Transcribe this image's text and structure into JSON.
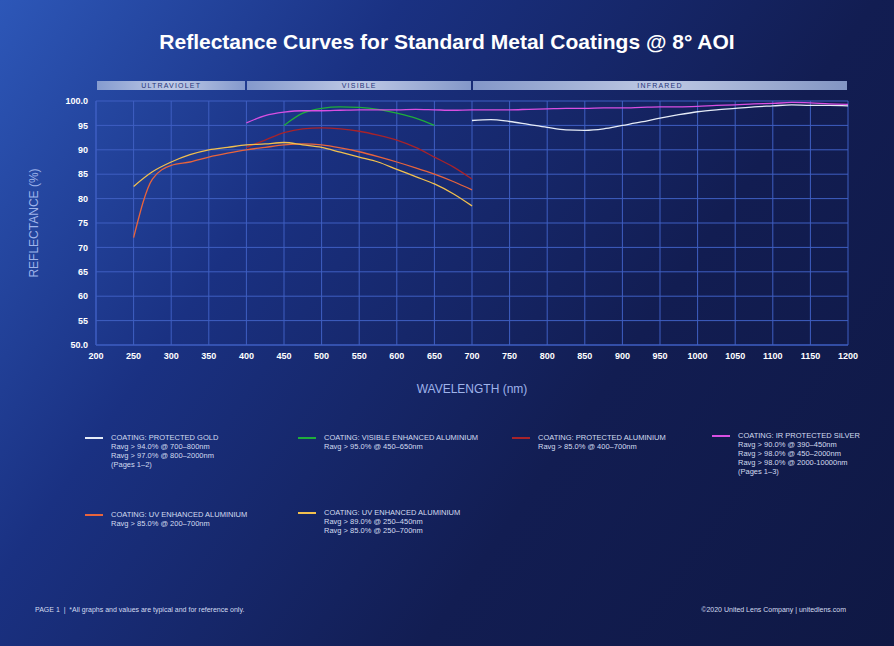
{
  "chart_data": {
    "type": "line",
    "title": "Reflectance Curves for Standard Metal Coatings @ 8° AOI",
    "x_label": "WAVELENGTH (nm)",
    "y_label": "REFLECTANCE (%)",
    "regions": [
      {
        "label": "ULTRAVIOLET",
        "start": 200,
        "end": 400
      },
      {
        "label": "VISIBLE",
        "start": 400,
        "end": 700
      },
      {
        "label": "INFRARED",
        "start": 700,
        "end": 1200
      }
    ],
    "x": [
      250,
      275,
      300,
      325,
      350,
      375,
      400,
      425,
      450,
      475,
      500,
      525,
      550,
      575,
      600,
      625,
      650,
      675,
      700,
      725,
      750,
      775,
      800,
      825,
      850,
      875,
      900,
      925,
      950,
      975,
      1000,
      1025,
      1050,
      1075,
      1100,
      1125,
      1150,
      1175,
      1200
    ],
    "xlim": [
      200,
      1200
    ],
    "xticks": [
      200,
      250,
      300,
      350,
      400,
      450,
      500,
      550,
      600,
      650,
      700,
      750,
      800,
      850,
      900,
      950,
      1000,
      1050,
      1100,
      1150,
      1200
    ],
    "ylim": [
      50,
      100
    ],
    "yticks": [
      {
        "value": 50,
        "label": "50.0"
      },
      55,
      60,
      65,
      70,
      75,
      80,
      85,
      90,
      95,
      {
        "value": 100,
        "label": "100.0"
      }
    ],
    "grid": true,
    "legend": "bottom",
    "series": [
      {
        "name": "COATING: PROTECTED GOLD",
        "color": "#e6ecf7",
        "notes": [
          "Ravg > 94.0% @ 700–800nm",
          "Ravg > 97.0% @ 800–2000nm",
          "(Pages 1–2)"
        ],
        "values": [
          null,
          null,
          null,
          null,
          null,
          null,
          null,
          null,
          null,
          null,
          null,
          null,
          null,
          null,
          null,
          null,
          null,
          null,
          96,
          96.2,
          95.8,
          95.2,
          94.6,
          94.1,
          94,
          94.3,
          95,
          95.7,
          96.5,
          97.2,
          97.8,
          98.2,
          98.5,
          98.8,
          99,
          99.2,
          99.1,
          99.1,
          99
        ]
      },
      {
        "name": "COATING: VISIBLE ENHANCED ALUMINIUM",
        "color": "#1fae3a",
        "notes": [
          "Ravg > 95.0% @ 450–650nm"
        ],
        "values": [
          null,
          null,
          null,
          null,
          null,
          null,
          null,
          null,
          95,
          97.5,
          98.5,
          98.8,
          98.7,
          98.3,
          97.5,
          96.5,
          95,
          null,
          null,
          null,
          null,
          null,
          null,
          null,
          null,
          null,
          null,
          null,
          null,
          null,
          null,
          null,
          null,
          null,
          null,
          null,
          null,
          null,
          null
        ]
      },
      {
        "name": "COATING: PROTECTED ALUMINIUM",
        "color": "#a8232a",
        "notes": [
          "Ravg > 85.0% @ 400–700nm"
        ],
        "values": [
          null,
          null,
          null,
          null,
          null,
          null,
          90.5,
          92,
          93.5,
          94.3,
          94.5,
          94.3,
          93.8,
          93,
          92,
          90.5,
          88.5,
          86.5,
          84,
          null,
          null,
          null,
          null,
          null,
          null,
          null,
          null,
          null,
          null,
          null,
          null,
          null,
          null,
          null,
          null,
          null,
          null,
          null,
          null
        ]
      },
      {
        "name": "COATING: IR PROTECTED SILVER",
        "color": "#d84fe2",
        "notes": [
          "Ravg > 90.0% @ 390–450nm",
          "Ravg > 98.0% @ 450–2000nm",
          "Ravg > 98.0% @ 2000-10000nm",
          "(Pages 1–3)"
        ],
        "values": [
          null,
          null,
          null,
          null,
          null,
          null,
          95.5,
          97,
          97.7,
          98,
          98,
          98.1,
          98.2,
          98.2,
          98.2,
          98.3,
          98.2,
          98.1,
          98.2,
          98.2,
          98.2,
          98.3,
          98.4,
          98.5,
          98.5,
          98.6,
          98.6,
          98.7,
          98.8,
          98.8,
          98.9,
          99.1,
          99.2,
          99.4,
          99.5,
          99.7,
          99.6,
          99.4,
          99.3
        ]
      },
      {
        "name": "COATING: UV ENHANCED ALUMINIUM",
        "color": "#e8643c",
        "notes": [
          "Ravg > 85.0% @ 200–700nm"
        ],
        "values": [
          72,
          84,
          86.8,
          87.5,
          88.5,
          89.3,
          90,
          90.5,
          91,
          91.2,
          91,
          90.4,
          89.6,
          88.6,
          87.5,
          86.3,
          85,
          83.5,
          81.8,
          null,
          null,
          null,
          null,
          null,
          null,
          null,
          null,
          null,
          null,
          null,
          null,
          null,
          null,
          null,
          null,
          null,
          null,
          null,
          null
        ]
      },
      {
        "name": "COATING:  UV ENHANCED ALUMINIUM",
        "color": "#f2c04e",
        "notes": [
          "Ravg > 89.0% @ 250–450nm",
          "Ravg > 85.0% @ 250–700nm"
        ],
        "values": [
          82.5,
          85.5,
          87.5,
          89,
          90,
          90.5,
          91,
          91.2,
          91.5,
          91,
          90.5,
          89.5,
          88.5,
          87.5,
          86,
          84.5,
          83,
          81,
          78.5,
          null,
          null,
          null,
          null,
          null,
          null,
          null,
          null,
          null,
          null,
          null,
          null,
          null,
          null,
          null,
          null,
          null,
          null,
          null,
          null
        ]
      }
    ],
    "footer_left": "PAGE 1  |  *All graphs and values are typical and for reference only.",
    "footer_right": "©2020 United Lens Company | unitedlens.com"
  }
}
